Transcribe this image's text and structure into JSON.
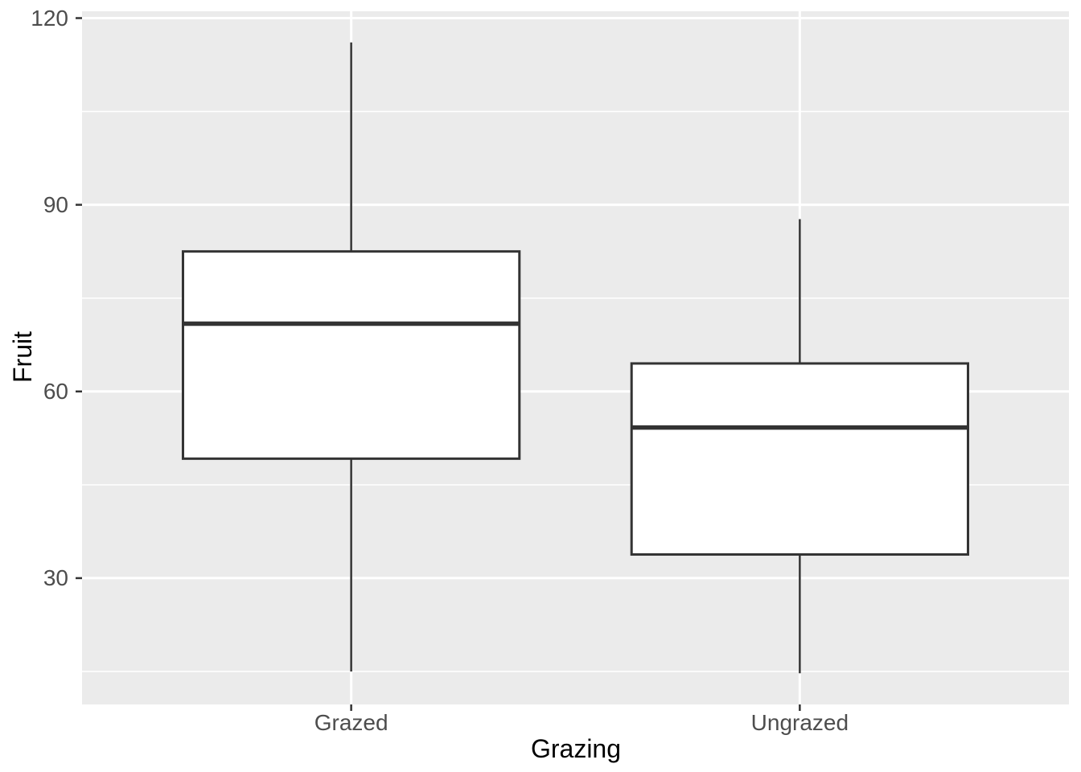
{
  "figure": {
    "background_color": "#FFFFFF",
    "panel_background_color": "#EBEBEB",
    "grid_color": "#FFFFFF",
    "box_fill_color": "#FFFFFF",
    "box_stroke_color": "#333333",
    "tick_mark_color": "#333333",
    "axis_text_color": "#4D4D4D",
    "axis_title_color": "#000000"
  },
  "chart_data": {
    "type": "boxplot",
    "title": "",
    "xlabel": "Grazing",
    "ylabel": "Fruit",
    "categories": [
      "Grazed",
      "Ungrazed"
    ],
    "series": [
      {
        "name": "Grazed",
        "whisker_low": 15.0,
        "q1": 49.2,
        "median": 70.9,
        "q3": 82.5,
        "whisker_high": 116.1
      },
      {
        "name": "Ungrazed",
        "whisker_low": 14.7,
        "q1": 33.8,
        "median": 54.2,
        "q3": 64.5,
        "whisker_high": 87.7
      }
    ],
    "y_major_ticks": [
      30,
      60,
      90,
      120
    ],
    "y_minor_ticks": [
      15,
      45,
      75,
      105
    ],
    "ylim": [
      9.7,
      121.1
    ],
    "x_domain": [
      0.4,
      2.6
    ],
    "box_half_width": 0.375,
    "grid": true,
    "legend_position": "none"
  }
}
